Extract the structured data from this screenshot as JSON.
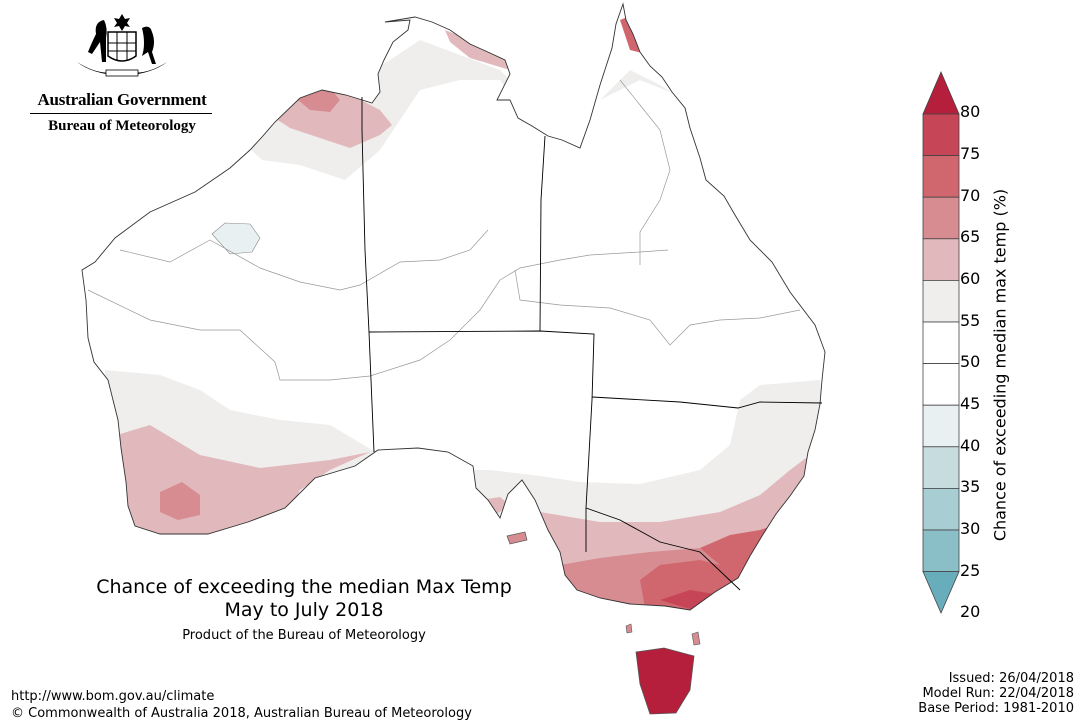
{
  "header": {
    "government": "Australian Government",
    "bureau": "Bureau of Meteorology"
  },
  "map": {
    "title": "Chance of exceeding the median Max Temp",
    "period": "May to July 2018",
    "product": "Product of the Bureau of Meteorology",
    "region": "Australia"
  },
  "legend": {
    "title": "Chance of exceeding median max temp (%)",
    "ticks": [
      "80",
      "75",
      "70",
      "65",
      "60",
      "55",
      "50",
      "45",
      "40",
      "35",
      "30",
      "25",
      "20"
    ],
    "colors_top_to_bottom": [
      "#b51f3c",
      "#c64556",
      "#d0676f",
      "#d68c91",
      "#e1b9bc",
      "#efeeed",
      "#ffffff",
      "#ffffff",
      "#e9f0f2",
      "#c6dcdf",
      "#a8cdd3",
      "#8bbfc8",
      "#68adbc"
    ]
  },
  "footer": {
    "url": "http://www.bom.gov.au/climate",
    "copyright": "© Commonwealth of Australia 2018, Australian Bureau of Meteorology",
    "issued": "Issued: 26/04/2018",
    "model_run": "Model Run: 22/04/2018",
    "base_period": "Base Period: 1981-2010"
  }
}
